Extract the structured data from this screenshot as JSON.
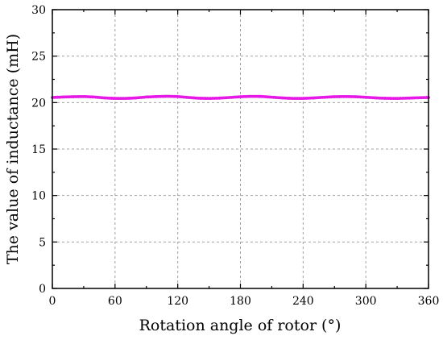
{
  "chart_data": {
    "type": "line",
    "title": "",
    "xlabel": "Rotation angle of rotor (°)",
    "ylabel": "The value of inductance (mH)",
    "xlim": [
      0,
      360
    ],
    "ylim": [
      0,
      30
    ],
    "x_ticks": [
      "0",
      "60",
      "120",
      "180",
      "240",
      "300",
      "360"
    ],
    "y_ticks": [
      "0",
      "5",
      "10",
      "15",
      "20",
      "25",
      "30"
    ],
    "grid": true,
    "legend": "none",
    "series": [
      {
        "color": "#e619e6",
        "marker": "dot",
        "x": [
          0,
          10,
          20,
          30,
          40,
          50,
          60,
          70,
          80,
          90,
          100,
          110,
          120,
          130,
          140,
          150,
          160,
          170,
          180,
          190,
          200,
          210,
          220,
          230,
          240,
          250,
          260,
          270,
          280,
          290,
          300,
          310,
          320,
          330,
          340,
          350,
          360
        ],
        "y": [
          20.55,
          20.6,
          20.63,
          20.65,
          20.6,
          20.5,
          20.45,
          20.45,
          20.5,
          20.6,
          20.65,
          20.68,
          20.65,
          20.55,
          20.47,
          20.45,
          20.48,
          20.55,
          20.63,
          20.67,
          20.66,
          20.58,
          20.5,
          20.45,
          20.45,
          20.5,
          20.57,
          20.63,
          20.65,
          20.63,
          20.57,
          20.5,
          20.46,
          20.45,
          20.48,
          20.52,
          20.55
        ]
      }
    ]
  }
}
